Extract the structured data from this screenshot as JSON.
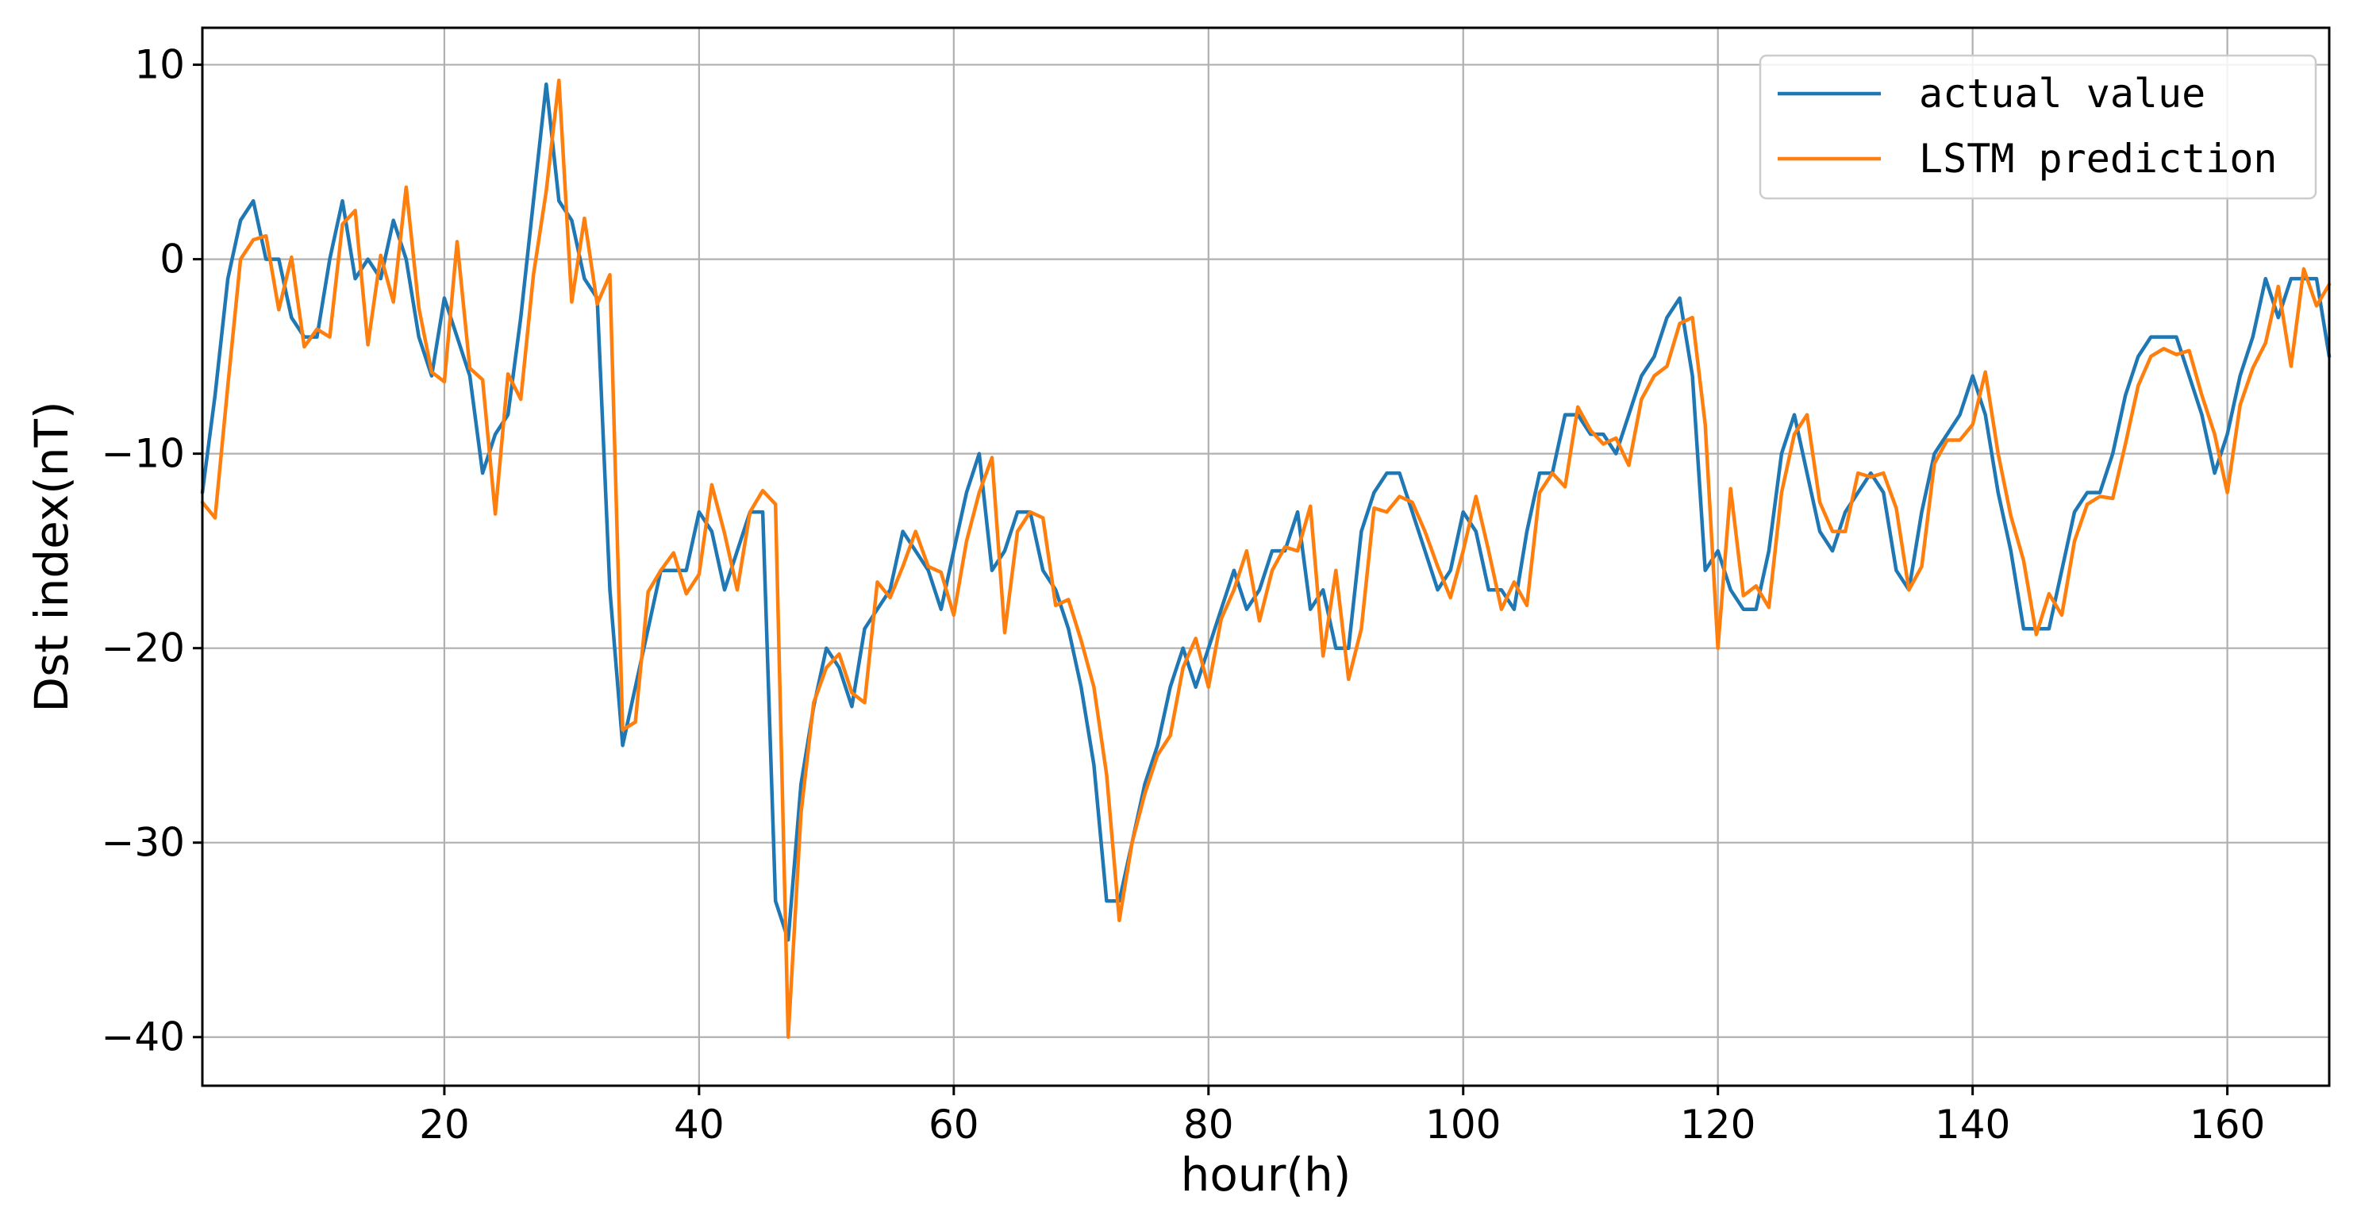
{
  "chart_data": {
    "type": "line",
    "title": "",
    "xlabel": "hour(h)",
    "ylabel": "Dst index(nT)",
    "xlim": [
      1,
      168
    ],
    "ylim": [
      -42.5,
      11.9
    ],
    "xticks": [
      20,
      40,
      60,
      80,
      100,
      120,
      140,
      160
    ],
    "yticks": [
      10,
      0,
      -10,
      -20,
      -30,
      -40
    ],
    "xtick_labels": [
      "20",
      "40",
      "60",
      "80",
      "100",
      "120",
      "140",
      "160"
    ],
    "ytick_labels": [
      "10",
      "0",
      "−10",
      "−20",
      "−30",
      "−40"
    ],
    "grid": true,
    "legend_position": "top-right",
    "x": [
      1,
      2,
      3,
      4,
      5,
      6,
      7,
      8,
      9,
      10,
      11,
      12,
      13,
      14,
      15,
      16,
      17,
      18,
      19,
      20,
      21,
      22,
      23,
      24,
      25,
      26,
      27,
      28,
      29,
      30,
      31,
      32,
      33,
      34,
      35,
      36,
      37,
      38,
      39,
      40,
      41,
      42,
      43,
      44,
      45,
      46,
      47,
      48,
      49,
      50,
      51,
      52,
      53,
      54,
      55,
      56,
      57,
      58,
      59,
      60,
      61,
      62,
      63,
      64,
      65,
      66,
      67,
      68,
      69,
      70,
      71,
      72,
      73,
      74,
      75,
      76,
      77,
      78,
      79,
      80,
      81,
      82,
      83,
      84,
      85,
      86,
      87,
      88,
      89,
      90,
      91,
      92,
      93,
      94,
      95,
      96,
      97,
      98,
      99,
      100,
      101,
      102,
      103,
      104,
      105,
      106,
      107,
      108,
      109,
      110,
      111,
      112,
      113,
      114,
      115,
      116,
      117,
      118,
      119,
      120,
      121,
      122,
      123,
      124,
      125,
      126,
      127,
      128,
      129,
      130,
      131,
      132,
      133,
      134,
      135,
      136,
      137,
      138,
      139,
      140,
      141,
      142,
      143,
      144,
      145,
      146,
      147,
      148,
      149,
      150,
      151,
      152,
      153,
      154,
      155,
      156,
      157,
      158,
      159,
      160,
      161,
      162,
      163,
      164,
      165,
      166,
      167,
      168
    ],
    "series": [
      {
        "name": "actual value",
        "color": "#1f77b4",
        "values": [
          -12,
          -7,
          -1,
          2,
          3,
          0,
          0,
          -3,
          -4,
          -4,
          0,
          3,
          -1,
          0,
          -1,
          2,
          0,
          -4,
          -6,
          -2,
          -4,
          -6,
          -11,
          -9,
          -8,
          -3,
          3,
          9,
          3,
          2,
          -1,
          -2,
          -17,
          -25,
          -22,
          -19,
          -16,
          -16,
          -16,
          -13,
          -14,
          -17,
          -15,
          -13,
          -13,
          -33,
          -35,
          -27,
          -23,
          -20,
          -21,
          -23,
          -19,
          -18,
          -17,
          -14,
          -15,
          -16,
          -18,
          -15,
          -12,
          -10,
          -16,
          -15,
          -13,
          -13,
          -16,
          -17,
          -19,
          -22,
          -26,
          -33,
          -33,
          -30,
          -27,
          -25,
          -22,
          -20,
          -22,
          -20,
          -18,
          -16,
          -18,
          -17,
          -15,
          -15,
          -13,
          -18,
          -17,
          -20,
          -20,
          -14,
          -12,
          -11,
          -11,
          -13,
          -15,
          -17,
          -16,
          -13,
          -14,
          -17,
          -17,
          -18,
          -14,
          -11,
          -11,
          -8,
          -8,
          -9,
          -9,
          -10,
          -8,
          -6,
          -5,
          -3,
          -2,
          -6,
          -16,
          -15,
          -17,
          -18,
          -18,
          -15,
          -10,
          -8,
          -11,
          -14,
          -15,
          -13,
          -12,
          -11,
          -12,
          -16,
          -17,
          -13,
          -10,
          -9,
          -8,
          -6,
          -8,
          -12,
          -15,
          -19,
          -19,
          -19,
          -16,
          -13,
          -12,
          -12,
          -10,
          -7,
          -5,
          -4,
          -4,
          -4,
          -6,
          -8,
          -11,
          -9,
          -6,
          -4,
          -1,
          -3,
          -1,
          -1,
          -1,
          -5
        ]
      },
      {
        "name": "LSTM prediction",
        "color": "#ff7f0e",
        "values": [
          -12.5,
          -13.3,
          -6.5,
          0,
          1,
          1.2,
          -2.6,
          0.1,
          -4.5,
          -3.6,
          -4.0,
          1.8,
          2.5,
          -4.4,
          0.2,
          -2.2,
          3.7,
          -2.5,
          -5.8,
          -6.3,
          0.9,
          -5.6,
          -6.2,
          -13.1,
          -5.9,
          -7.2,
          -0.8,
          3.5,
          9.2,
          -2.2,
          2.1,
          -2.3,
          -0.8,
          -24.2,
          -23.8,
          -17.1,
          -16.0,
          -15.1,
          -17.2,
          -16.2,
          -11.6,
          -14.1,
          -17.0,
          -13.0,
          -11.9,
          -12.6,
          -40.0,
          -28.5,
          -22.8,
          -21.0,
          -20.3,
          -22.3,
          -22.8,
          -16.6,
          -17.4,
          -15.8,
          -14.0,
          -15.8,
          -16.1,
          -18.3,
          -14.5,
          -12.0,
          -10.2,
          -19.2,
          -14.0,
          -13.0,
          -13.3,
          -17.8,
          -17.5,
          -19.6,
          -22.0,
          -26.5,
          -34.0,
          -30.0,
          -27.5,
          -25.5,
          -24.5,
          -21.0,
          -19.5,
          -22.0,
          -18.5,
          -17.0,
          -15.0,
          -18.6,
          -16.0,
          -14.8,
          -15.0,
          -12.7,
          -20.4,
          -16.0,
          -21.6,
          -19.0,
          -12.8,
          -13.0,
          -12.2,
          -12.5,
          -14.0,
          -15.8,
          -17.4,
          -15.0,
          -12.2,
          -15.0,
          -18.0,
          -16.6,
          -17.8,
          -12.0,
          -11.0,
          -11.7,
          -7.6,
          -8.8,
          -9.5,
          -9.2,
          -10.6,
          -7.2,
          -6.0,
          -5.5,
          -3.3,
          -3.0,
          -8.5,
          -20.0,
          -11.8,
          -17.3,
          -16.8,
          -17.9,
          -12.0,
          -9.0,
          -8.0,
          -12.5,
          -14.0,
          -14.0,
          -11.0,
          -11.2,
          -11.0,
          -12.8,
          -17.0,
          -15.8,
          -10.5,
          -9.3,
          -9.3,
          -8.5,
          -5.8,
          -10.0,
          -13.2,
          -15.5,
          -19.3,
          -17.2,
          -18.3,
          -14.5,
          -12.6,
          -12.2,
          -12.3,
          -9.5,
          -6.5,
          -5.0,
          -4.6,
          -4.9,
          -4.7,
          -7.0,
          -9.0,
          -12.0,
          -7.5,
          -5.6,
          -4.3,
          -1.4,
          -5.5,
          -0.5,
          -2.4,
          -1.3
        ]
      }
    ]
  }
}
